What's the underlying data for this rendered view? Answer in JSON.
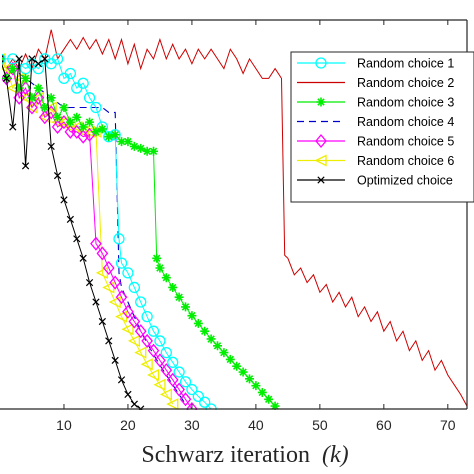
{
  "chart_data": {
    "type": "line",
    "title": "",
    "xlabel_main": "Schwarz iteration",
    "xlabel_var": "(k)",
    "ylabel": "",
    "xlim": [
      0,
      73
    ],
    "ylim": [
      0,
      40
    ],
    "x_ticks": [
      10,
      20,
      30,
      40,
      50,
      60,
      70
    ],
    "grid": false,
    "legend_position": "top-right",
    "series": [
      {
        "name": "Random choice 1",
        "color": "#00FFFF",
        "marker": "circle",
        "values": [
          [
            0,
            36
          ],
          [
            2,
            36
          ],
          [
            4,
            35
          ],
          [
            5,
            35.5
          ],
          [
            6,
            35
          ],
          [
            7,
            36
          ],
          [
            8,
            35.5
          ],
          [
            9,
            36
          ],
          [
            10,
            34
          ],
          [
            11,
            34.5
          ],
          [
            12,
            33
          ],
          [
            13,
            33.5
          ],
          [
            14,
            32
          ],
          [
            15,
            31
          ],
          [
            16,
            29
          ],
          [
            17,
            28
          ],
          [
            18,
            28.2
          ],
          [
            18.6,
            17.5
          ],
          [
            19,
            15
          ],
          [
            20,
            14
          ],
          [
            21,
            12.5
          ],
          [
            22,
            11
          ],
          [
            23,
            9.5
          ],
          [
            24,
            8
          ],
          [
            25,
            7
          ],
          [
            26,
            5.8
          ],
          [
            27,
            4.8
          ],
          [
            28,
            3.8
          ],
          [
            29,
            2.8
          ],
          [
            30,
            2
          ],
          [
            31,
            1.3
          ],
          [
            32,
            0.7
          ],
          [
            33,
            0
          ]
        ]
      },
      {
        "name": "Random choice 2",
        "color": "#CC0000",
        "marker": "none",
        "values": [
          [
            0,
            36
          ],
          [
            1,
            35
          ],
          [
            2,
            36
          ],
          [
            3,
            35
          ],
          [
            4,
            36.5
          ],
          [
            5,
            35
          ],
          [
            6,
            37
          ],
          [
            7,
            36
          ],
          [
            8,
            39
          ],
          [
            9,
            36
          ],
          [
            10,
            37
          ],
          [
            11,
            38
          ],
          [
            12,
            37
          ],
          [
            13,
            38.2
          ],
          [
            14,
            37
          ],
          [
            15,
            38
          ],
          [
            16,
            36.5
          ],
          [
            17,
            38
          ],
          [
            18,
            36
          ],
          [
            19,
            38
          ],
          [
            20,
            35.5
          ],
          [
            21,
            37.5
          ],
          [
            22,
            35
          ],
          [
            23,
            37
          ],
          [
            24,
            36
          ],
          [
            25,
            38
          ],
          [
            26,
            36
          ],
          [
            27,
            37.5
          ],
          [
            28,
            36
          ],
          [
            29,
            37
          ],
          [
            30,
            35.5
          ],
          [
            31,
            37
          ],
          [
            32,
            36
          ],
          [
            33,
            37
          ],
          [
            34,
            36
          ],
          [
            35,
            35
          ],
          [
            36,
            37
          ],
          [
            37,
            36
          ],
          [
            38,
            34.5
          ],
          [
            39,
            36
          ],
          [
            40,
            35
          ],
          [
            41,
            34
          ],
          [
            42,
            34
          ],
          [
            43,
            35
          ],
          [
            44,
            34
          ],
          [
            44.5,
            15.8
          ],
          [
            45,
            15.5
          ],
          [
            46,
            13.8
          ],
          [
            47,
            14.5
          ],
          [
            48,
            13
          ],
          [
            49,
            13.8
          ],
          [
            50,
            12
          ],
          [
            51,
            12.8
          ],
          [
            52,
            11
          ],
          [
            53,
            12
          ],
          [
            54,
            10.5
          ],
          [
            55,
            11.5
          ],
          [
            56,
            9.5
          ],
          [
            57,
            10.5
          ],
          [
            58,
            9
          ],
          [
            59,
            10
          ],
          [
            60,
            8
          ],
          [
            61,
            9
          ],
          [
            62,
            7
          ],
          [
            63,
            8
          ],
          [
            64,
            6
          ],
          [
            65,
            7
          ],
          [
            66,
            5
          ],
          [
            67,
            6
          ],
          [
            68,
            4
          ],
          [
            69,
            5
          ],
          [
            70,
            3.5
          ],
          [
            71,
            2.5
          ],
          [
            72,
            1.5
          ],
          [
            73,
            0.3
          ]
        ]
      },
      {
        "name": "Random choice 3",
        "color": "#00EE00",
        "marker": "star",
        "values": [
          [
            0,
            36
          ],
          [
            1,
            34
          ],
          [
            2,
            35
          ],
          [
            3,
            33
          ],
          [
            4,
            34
          ],
          [
            5,
            32
          ],
          [
            6,
            33
          ],
          [
            7,
            31
          ],
          [
            8,
            32
          ],
          [
            9,
            30
          ],
          [
            10,
            31
          ],
          [
            11,
            29.5
          ],
          [
            12,
            30
          ],
          [
            13,
            29
          ],
          [
            14,
            29.5
          ],
          [
            15,
            28.5
          ],
          [
            16,
            28.8
          ],
          [
            17,
            28
          ],
          [
            18,
            28.2
          ],
          [
            19,
            27.5
          ],
          [
            20,
            27.5
          ],
          [
            21,
            27
          ],
          [
            22,
            26.8
          ],
          [
            23,
            26.5
          ],
          [
            24,
            26.5
          ],
          [
            24.5,
            15.5
          ],
          [
            25,
            14.5
          ],
          [
            26,
            13.5
          ],
          [
            27,
            12.5
          ],
          [
            28,
            11.5
          ],
          [
            29,
            10.5
          ],
          [
            30,
            9.6
          ],
          [
            31,
            8.8
          ],
          [
            32,
            8
          ],
          [
            33,
            7.2
          ],
          [
            34,
            6.5
          ],
          [
            35,
            5.8
          ],
          [
            36,
            5.1
          ],
          [
            37,
            4.4
          ],
          [
            38,
            3.8
          ],
          [
            39,
            3.1
          ],
          [
            40,
            2.4
          ],
          [
            41,
            1.7
          ],
          [
            42,
            1
          ],
          [
            43,
            0.3
          ]
        ]
      },
      {
        "name": "Random choice 4",
        "color": "#0000CC",
        "marker": "dashed",
        "values": [
          [
            0,
            36
          ],
          [
            2,
            35
          ],
          [
            4,
            34
          ],
          [
            6,
            33
          ],
          [
            8,
            32
          ],
          [
            10,
            31
          ],
          [
            12,
            31
          ],
          [
            14,
            31
          ],
          [
            16,
            31
          ],
          [
            17,
            30.5
          ],
          [
            18,
            30.5
          ],
          [
            18.6,
            14
          ],
          [
            19,
            12.5
          ],
          [
            20,
            11
          ],
          [
            21,
            9.5
          ],
          [
            22,
            8
          ],
          [
            23,
            6.8
          ],
          [
            24,
            5.6
          ],
          [
            25,
            4.5
          ],
          [
            26,
            3.5
          ],
          [
            27,
            2.5
          ],
          [
            28,
            1.5
          ],
          [
            29,
            0.5
          ]
        ]
      },
      {
        "name": "Random choice 5",
        "color": "#FF00FF",
        "marker": "diamond",
        "values": [
          [
            0,
            36
          ],
          [
            1,
            34
          ],
          [
            2,
            35
          ],
          [
            3,
            32
          ],
          [
            4,
            33
          ],
          [
            5,
            31
          ],
          [
            6,
            32
          ],
          [
            7,
            30
          ],
          [
            8,
            30.5
          ],
          [
            9,
            29
          ],
          [
            10,
            29.5
          ],
          [
            11,
            28.5
          ],
          [
            12,
            28.5
          ],
          [
            13,
            28
          ],
          [
            14,
            28.2
          ],
          [
            15,
            17
          ],
          [
            16,
            16
          ],
          [
            17,
            14.5
          ],
          [
            18,
            13
          ],
          [
            19,
            11.5
          ],
          [
            20,
            10
          ],
          [
            21,
            9
          ],
          [
            22,
            8
          ],
          [
            23,
            7
          ],
          [
            24,
            6
          ],
          [
            25,
            5
          ],
          [
            26,
            4
          ],
          [
            27,
            3
          ],
          [
            28,
            2
          ],
          [
            29,
            1
          ],
          [
            30,
            0
          ]
        ]
      },
      {
        "name": "Random choice 6",
        "color": "#EEEE00",
        "marker": "triangle-left",
        "values": [
          [
            0,
            36
          ],
          [
            1,
            35
          ],
          [
            2,
            33
          ],
          [
            3,
            34
          ],
          [
            4,
            32
          ],
          [
            5,
            31
          ],
          [
            6,
            32
          ],
          [
            7,
            30
          ],
          [
            8,
            31
          ],
          [
            9,
            29.5
          ],
          [
            10,
            29.5
          ],
          [
            11,
            29
          ],
          [
            12,
            29
          ],
          [
            13,
            28.5
          ],
          [
            14,
            28.5
          ],
          [
            15,
            28.5
          ],
          [
            16,
            14
          ],
          [
            17,
            12.5
          ],
          [
            18,
            11
          ],
          [
            19,
            9.5
          ],
          [
            20,
            8.2
          ],
          [
            21,
            7
          ],
          [
            22,
            5.8
          ],
          [
            23,
            4.6
          ],
          [
            24,
            3.5
          ],
          [
            25,
            2.5
          ],
          [
            26,
            1.5
          ],
          [
            27,
            0.5
          ]
        ]
      },
      {
        "name": "Optimized choice",
        "color": "#000000",
        "marker": "x",
        "values": [
          [
            0,
            36
          ],
          [
            1,
            34
          ],
          [
            2,
            29
          ],
          [
            3,
            36
          ],
          [
            4,
            25
          ],
          [
            5,
            36
          ],
          [
            6,
            35.5
          ],
          [
            7,
            36
          ],
          [
            8,
            27
          ],
          [
            9,
            24
          ],
          [
            10,
            21.5
          ],
          [
            11,
            19.5
          ],
          [
            12,
            17.5
          ],
          [
            13,
            15.5
          ],
          [
            14,
            13
          ],
          [
            15,
            11
          ],
          [
            16,
            9
          ],
          [
            17,
            7
          ],
          [
            18,
            5
          ],
          [
            19,
            3
          ],
          [
            20,
            1.5
          ],
          [
            21,
            0.5
          ],
          [
            22,
            0
          ]
        ]
      }
    ]
  }
}
